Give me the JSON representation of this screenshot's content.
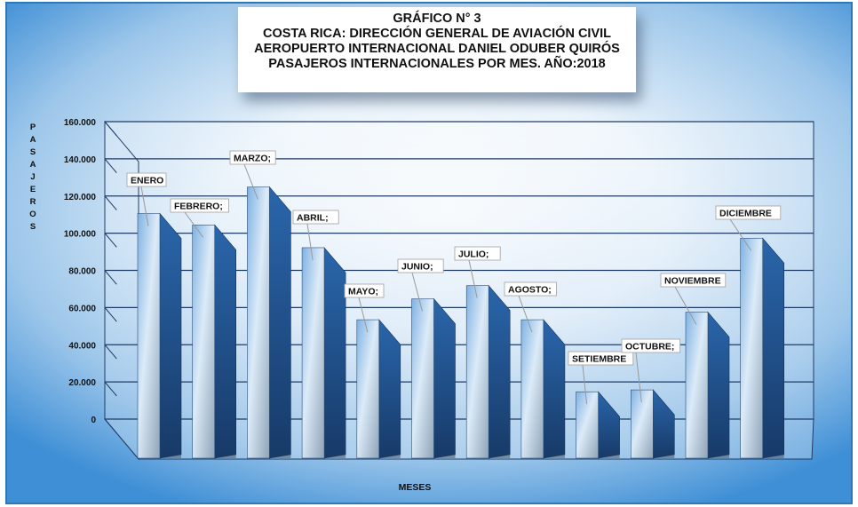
{
  "title_lines": [
    "GRÁFICO N° 3",
    "COSTA RICA: DIRECCIÓN GENERAL DE AVIACIÓN CIVIL",
    "AEROPUERTO INTERNACIONAL DANIEL ODUBER QUIRÓS",
    "PASAJEROS INTERNACIONALES  POR MES. AÑO:2018"
  ],
  "chart_data": {
    "type": "bar",
    "title": "GRÁFICO N° 3 COSTA RICA: DIRECCIÓN GENERAL DE AVIACIÓN CIVIL AEROPUERTO INTERNACIONAL DANIEL ODUBER QUIRÓS PASAJEROS INTERNACIONALES  POR MES. AÑO:2018",
    "xlabel": "MESES",
    "ylabel": "PASAJEROS",
    "ylim": [
      0,
      160000
    ],
    "grid": true,
    "categories": [
      "ENERO",
      "FEBRERO",
      "MARZO",
      "ABRIL",
      "MAYO",
      "JUNIO",
      "JULIO",
      "AGOSTO",
      "SETIEMBRE",
      "OCTUBRE",
      "NOVIEMBRE",
      "DICIEMBRE"
    ],
    "data_labels": [
      "ENERO",
      "FEBRERO;",
      "MARZO;",
      "ABRIL;",
      "MAYO;",
      "JUNIO;",
      "JULIO;",
      "AGOSTO;",
      "SETIEMBRE",
      "OCTUBRE;",
      "NOVIEMBRE",
      "DICIEMBRE"
    ],
    "values": [
      129000,
      123000,
      143000,
      111000,
      73000,
      84000,
      91000,
      73000,
      35000,
      36000,
      77000,
      116000
    ],
    "yticks": [
      "0",
      "20.000",
      "40.000",
      "60.000",
      "80.000",
      "100.000",
      "120.000",
      "140.000",
      "160.000"
    ],
    "colors": {
      "front": "#cfe3f5",
      "side": "#1f4f87",
      "top": "#3a78c0",
      "grid": "#1f3d66",
      "floor": "#6e7b8a"
    }
  }
}
